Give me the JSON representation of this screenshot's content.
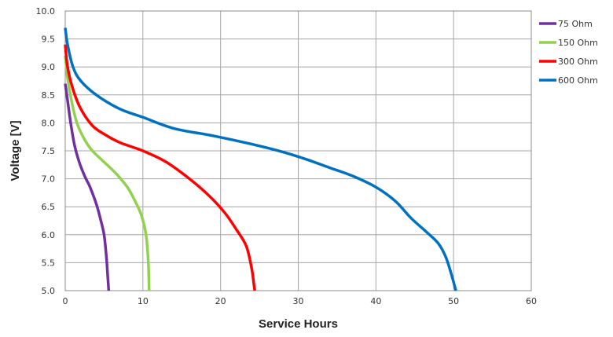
{
  "chart_data": {
    "type": "line",
    "title": "",
    "xlabel": "Service Hours",
    "ylabel": "Voltage [V]",
    "xlim": [
      0,
      60
    ],
    "ylim": [
      5.0,
      10.0
    ],
    "x_ticks": [
      "0",
      "10",
      "20",
      "30",
      "40",
      "50",
      "60"
    ],
    "y_ticks": [
      "5.0",
      "5.5",
      "6.0",
      "6.5",
      "7.0",
      "7.5",
      "8.0",
      "8.5",
      "9.0",
      "9.5",
      "10.0"
    ],
    "grid": true,
    "legend_position": "right",
    "series": [
      {
        "name": "75 Ohm",
        "color": "#7030A0",
        "x": [
          0,
          0.3,
          0.7,
          1.2,
          1.8,
          2.5,
          3.2,
          4.0,
          4.5,
          5.0,
          5.3,
          5.5,
          5.6
        ],
        "y": [
          8.7,
          8.4,
          8.0,
          7.6,
          7.3,
          7.05,
          6.85,
          6.55,
          6.3,
          6.0,
          5.6,
          5.2,
          5.0
        ]
      },
      {
        "name": "150 Ohm",
        "color": "#92D050",
        "x": [
          0,
          0.3,
          0.8,
          1.5,
          2.5,
          3.5,
          5.0,
          6.5,
          8.0,
          9.0,
          9.8,
          10.4,
          10.7,
          10.8
        ],
        "y": [
          9.2,
          8.8,
          8.4,
          8.0,
          7.7,
          7.5,
          7.3,
          7.1,
          6.85,
          6.6,
          6.35,
          6.0,
          5.5,
          5.0
        ]
      },
      {
        "name": "300 Ohm",
        "color": "#FF0000",
        "x": [
          0,
          0.3,
          1.0,
          2.0,
          3.5,
          5.0,
          7.0,
          10.0,
          13.0,
          16.0,
          18.5,
          20.5,
          22.0,
          23.3,
          24.0,
          24.3,
          24.4
        ],
        "y": [
          9.4,
          9.0,
          8.6,
          8.25,
          7.95,
          7.8,
          7.65,
          7.5,
          7.3,
          7.0,
          6.7,
          6.4,
          6.1,
          5.8,
          5.4,
          5.1,
          5.0
        ]
      },
      {
        "name": "600 Ohm",
        "color": "#0070C0",
        "x": [
          0,
          0.3,
          1.0,
          2.0,
          4.0,
          7.0,
          10.0,
          14.0,
          19.0,
          24.0,
          28.0,
          31.0,
          34.0,
          37.0,
          40.0,
          42.5,
          44.5,
          46.5,
          48.0,
          49.0,
          49.7,
          50.1,
          50.3
        ],
        "y": [
          9.7,
          9.4,
          9.0,
          8.75,
          8.5,
          8.25,
          8.1,
          7.9,
          7.77,
          7.62,
          7.48,
          7.35,
          7.2,
          7.05,
          6.85,
          6.6,
          6.3,
          6.05,
          5.85,
          5.6,
          5.3,
          5.1,
          5.0
        ]
      }
    ]
  }
}
